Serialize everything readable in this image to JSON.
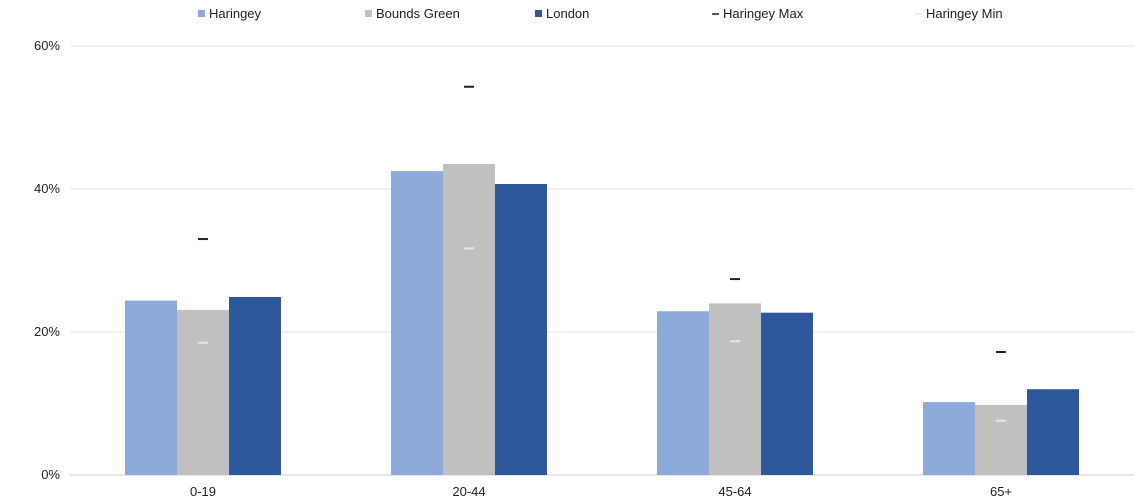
{
  "chart_data": {
    "type": "bar",
    "categories": [
      "0-19",
      "20-44",
      "45-64",
      "65+"
    ],
    "series": [
      {
        "name": "Haringey",
        "values": [
          24.4,
          42.5,
          22.9,
          10.2
        ],
        "color": "#8eaadb"
      },
      {
        "name": "Bounds Green",
        "values": [
          23.1,
          43.5,
          24.0,
          9.8
        ],
        "color": "#c0c0c0"
      },
      {
        "name": "London",
        "values": [
          24.9,
          40.7,
          22.7,
          12.0
        ],
        "color": "#2f579c"
      }
    ],
    "markers": [
      {
        "name": "Haringey Max",
        "values": [
          33.0,
          54.3,
          27.4,
          17.2
        ],
        "color": "#222222"
      },
      {
        "name": "Haringey Min",
        "values": [
          18.5,
          31.7,
          18.7,
          7.6
        ],
        "color": "#e6e6e6"
      }
    ],
    "y_ticks": [
      "0%",
      "20%",
      "40%",
      "60%"
    ],
    "ylim": [
      0,
      60
    ],
    "grid": true,
    "legend_position": "top-center"
  }
}
